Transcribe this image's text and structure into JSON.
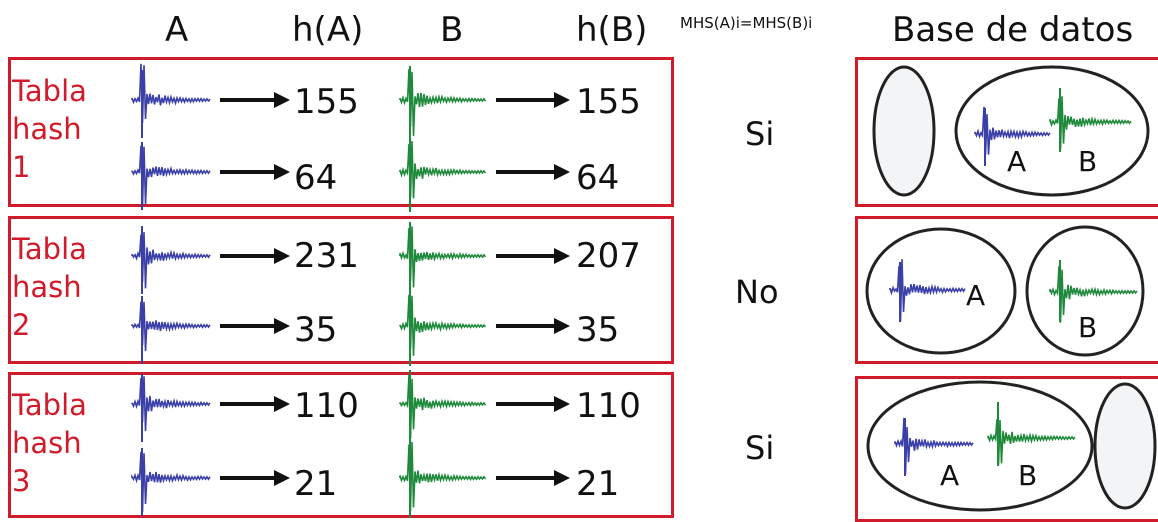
{
  "headers": {
    "col_a": "A",
    "col_ha": "h(A)",
    "col_b": "B",
    "col_hb": "h(B)",
    "col_cond": "MHS(A)i=MHS(B)i",
    "col_db": "Base de datos"
  },
  "colors": {
    "border": "#d11a2a",
    "wave_a": "#3b3fa8",
    "wave_b": "#1f8a3b",
    "label": "#d11a2a"
  },
  "tables": [
    {
      "label_lines": [
        "Tabla",
        "hash",
        "1"
      ],
      "ha": [
        "155",
        "64"
      ],
      "hb": [
        "155",
        "64"
      ],
      "result": "Si",
      "db": {
        "bucket_letters": [
          "A",
          "B"
        ]
      }
    },
    {
      "label_lines": [
        "Tabla",
        "hash",
        "2"
      ],
      "ha": [
        "231",
        "35"
      ],
      "hb": [
        "207",
        "35"
      ],
      "result": "No",
      "db": {
        "bucket_letters": [
          "A",
          "B"
        ]
      }
    },
    {
      "label_lines": [
        "Tabla",
        "hash",
        "3"
      ],
      "ha": [
        "110",
        "21"
      ],
      "hb": [
        "110",
        "21"
      ],
      "result": "Si",
      "db": {
        "bucket_letters": [
          "A",
          "B"
        ]
      }
    }
  ]
}
